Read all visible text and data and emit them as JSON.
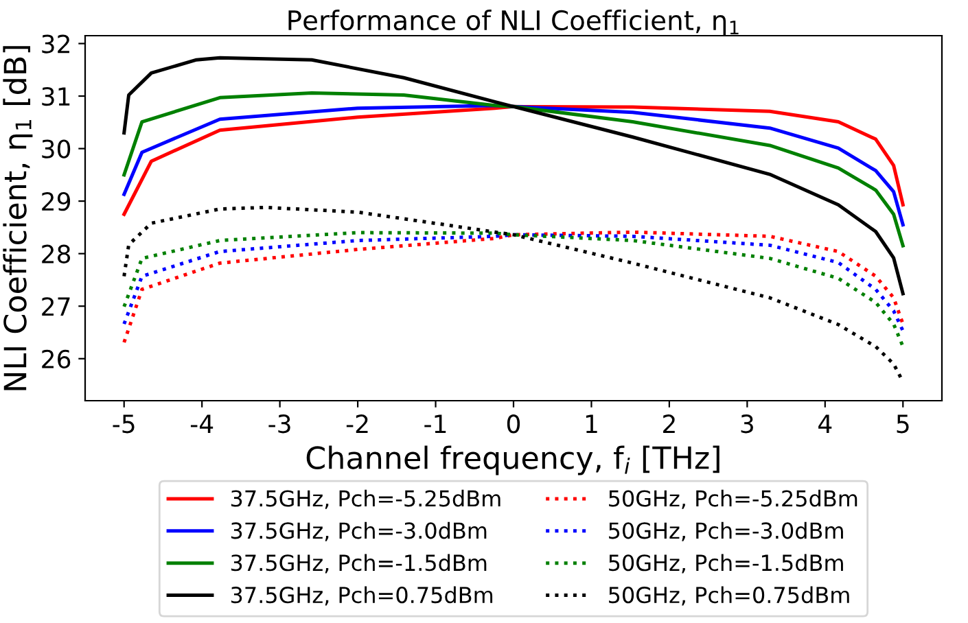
{
  "chart_data": {
    "type": "line",
    "title": "Performance of NLI Coefficient, η$_{1}$",
    "xlabel": "Channel frequency, f$_{i}$ [THz]",
    "ylabel": "NLI Coefficient, η$_{1}$ [dB]",
    "xlim": [
      -5.5,
      5.5
    ],
    "ylim": [
      25.2,
      32.15
    ],
    "xticks": [
      -5,
      -4,
      -3,
      -2,
      -1,
      0,
      1,
      2,
      3,
      4,
      5
    ],
    "yticks": [
      26,
      27,
      28,
      29,
      30,
      31,
      32
    ],
    "grid": false,
    "legend": "bottom",
    "marker": "none",
    "series": [
      {
        "name": "37.5GHz, Pch=-5.25dBm",
        "color": "#ff0000",
        "line_style": "solid",
        "x": [
          -5,
          -4.65,
          -3.77,
          -2.0,
          -0.24,
          0,
          1.53,
          3.29,
          4.17,
          4.65,
          4.88,
          5
        ],
        "values": [
          28.75,
          29.76,
          30.35,
          30.6,
          30.77,
          30.8,
          30.79,
          30.71,
          30.51,
          30.18,
          29.68,
          28.93
        ]
      },
      {
        "name": "37.5GHz, Pch=-3.0dBm",
        "color": "#0000ff",
        "line_style": "solid",
        "x": [
          -5,
          -4.77,
          -3.77,
          -2.0,
          -0.24,
          0,
          1.53,
          3.29,
          4.17,
          4.65,
          4.88,
          5
        ],
        "values": [
          29.13,
          29.93,
          30.56,
          30.77,
          30.82,
          30.8,
          30.69,
          30.39,
          30.01,
          29.58,
          29.18,
          28.55
        ]
      },
      {
        "name": "37.5GHz, Pch=-1.5dBm",
        "color": "#008000",
        "line_style": "solid",
        "x": [
          -5,
          -4.77,
          -3.77,
          -2.59,
          -1.41,
          -0.24,
          0,
          1.53,
          3.29,
          4.17,
          4.65,
          4.88,
          5
        ],
        "values": [
          29.5,
          30.51,
          30.97,
          31.06,
          31.02,
          30.82,
          30.8,
          30.51,
          30.06,
          29.63,
          29.21,
          28.75,
          28.15
        ]
      },
      {
        "name": "37.5GHz, Pch=0.75dBm",
        "color": "#000000",
        "line_style": "solid",
        "x": [
          -5,
          -4.94,
          -4.65,
          -4.07,
          -3.77,
          -2.59,
          -1.41,
          -0.24,
          0,
          1.53,
          3.29,
          4.17,
          4.65,
          4.88,
          5
        ],
        "values": [
          30.3,
          31.02,
          31.44,
          31.69,
          31.73,
          31.69,
          31.35,
          30.89,
          30.8,
          30.22,
          29.51,
          28.93,
          28.42,
          27.92,
          27.24
        ]
      },
      {
        "name": "50GHz, Pch=-5.25dBm",
        "color": "#ff0000",
        "line_style": "dotted",
        "x": [
          -5,
          -4.77,
          -3.77,
          -2.0,
          -0.24,
          0,
          1.53,
          3.29,
          4.17,
          4.65,
          4.88,
          5
        ],
        "values": [
          26.31,
          27.32,
          27.82,
          28.08,
          28.29,
          28.36,
          28.41,
          28.33,
          28.04,
          27.57,
          27.16,
          26.66
        ]
      },
      {
        "name": "50GHz, Pch=-3.0dBm",
        "color": "#0000ff",
        "line_style": "dotted",
        "x": [
          -5,
          -4.77,
          -3.77,
          -2.0,
          -0.24,
          0,
          1.53,
          3.29,
          4.17,
          4.65,
          4.88,
          5
        ],
        "values": [
          26.66,
          27.57,
          28.04,
          28.25,
          28.33,
          28.36,
          28.33,
          28.16,
          27.83,
          27.32,
          26.91,
          26.53
        ]
      },
      {
        "name": "50GHz, Pch=-1.5dBm",
        "color": "#008000",
        "line_style": "dotted",
        "x": [
          -5,
          -4.77,
          -3.77,
          -2.0,
          -0.24,
          0,
          1.53,
          3.29,
          4.17,
          4.65,
          4.88,
          5
        ],
        "values": [
          26.99,
          27.91,
          28.25,
          28.4,
          28.39,
          28.36,
          28.25,
          27.91,
          27.53,
          27.07,
          26.66,
          26.23
        ]
      },
      {
        "name": "50GHz, Pch=0.75dBm",
        "color": "#000000",
        "line_style": "dotted",
        "x": [
          -5,
          -4.94,
          -4.65,
          -3.77,
          -3.18,
          -2.0,
          -0.83,
          -0.24,
          0,
          1.53,
          3.29,
          4.17,
          4.65,
          4.88,
          5
        ],
        "values": [
          27.57,
          28.17,
          28.58,
          28.85,
          28.88,
          28.79,
          28.54,
          28.41,
          28.36,
          27.82,
          27.16,
          26.65,
          26.23,
          25.9,
          25.56
        ]
      }
    ]
  }
}
